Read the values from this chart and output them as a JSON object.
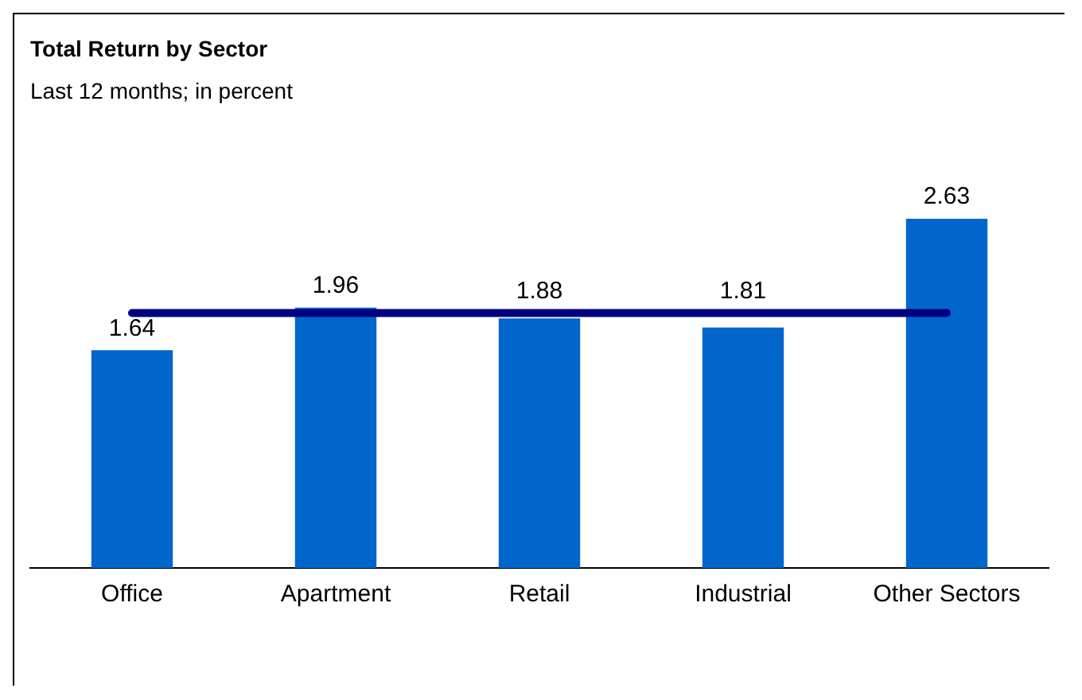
{
  "chart_data": {
    "type": "bar",
    "title": "Total Return by Sector",
    "subtitle": "Last 12 months; in percent",
    "categories": [
      "Office",
      "Apartment",
      "Retail",
      "Industrial",
      "Other Sectors"
    ],
    "series": [
      {
        "color": "#0066cc",
        "values": [
          1.64,
          1.96,
          1.88,
          1.81,
          2.63
        ],
        "value_labels": [
          "1.64",
          "1.96",
          "1.88",
          "1.81",
          "2.63"
        ]
      },
      {
        "type": "line",
        "color": "#000080",
        "values": [
          1.92,
          1.92,
          1.92,
          1.92,
          1.92
        ]
      }
    ],
    "grid": false,
    "legend": false,
    "marker": "none"
  }
}
